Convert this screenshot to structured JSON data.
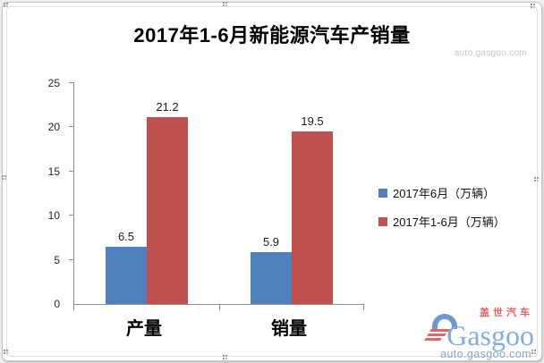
{
  "chart": {
    "title": "2017年1-6月新能源汽车产销量"
  },
  "watermarks": {
    "top_right": "auto.gasgoo.com"
  },
  "chart_data": {
    "type": "bar",
    "title": "2017年1-6月新能源汽车产销量",
    "categories": [
      "产量",
      "销量"
    ],
    "series": [
      {
        "name": "2017年6月（万辆）",
        "color": "#4f81bd",
        "values": [
          6.5,
          5.9
        ]
      },
      {
        "name": "2017年1-6月（万辆）",
        "color": "#c0504d",
        "values": [
          21.2,
          19.5
        ]
      }
    ],
    "xlabel": "",
    "ylabel": "",
    "ylim": [
      0,
      25
    ],
    "yticks": [
      0,
      5,
      10,
      15,
      20,
      25
    ],
    "grid": false,
    "legend_position": "right",
    "data_labels": true,
    "axis_color": "#8f8f8f"
  },
  "logo": {
    "brand_cn": "盖世汽车",
    "brand_en": "Gasgoo",
    "site": "auto.gasgoo.com"
  }
}
